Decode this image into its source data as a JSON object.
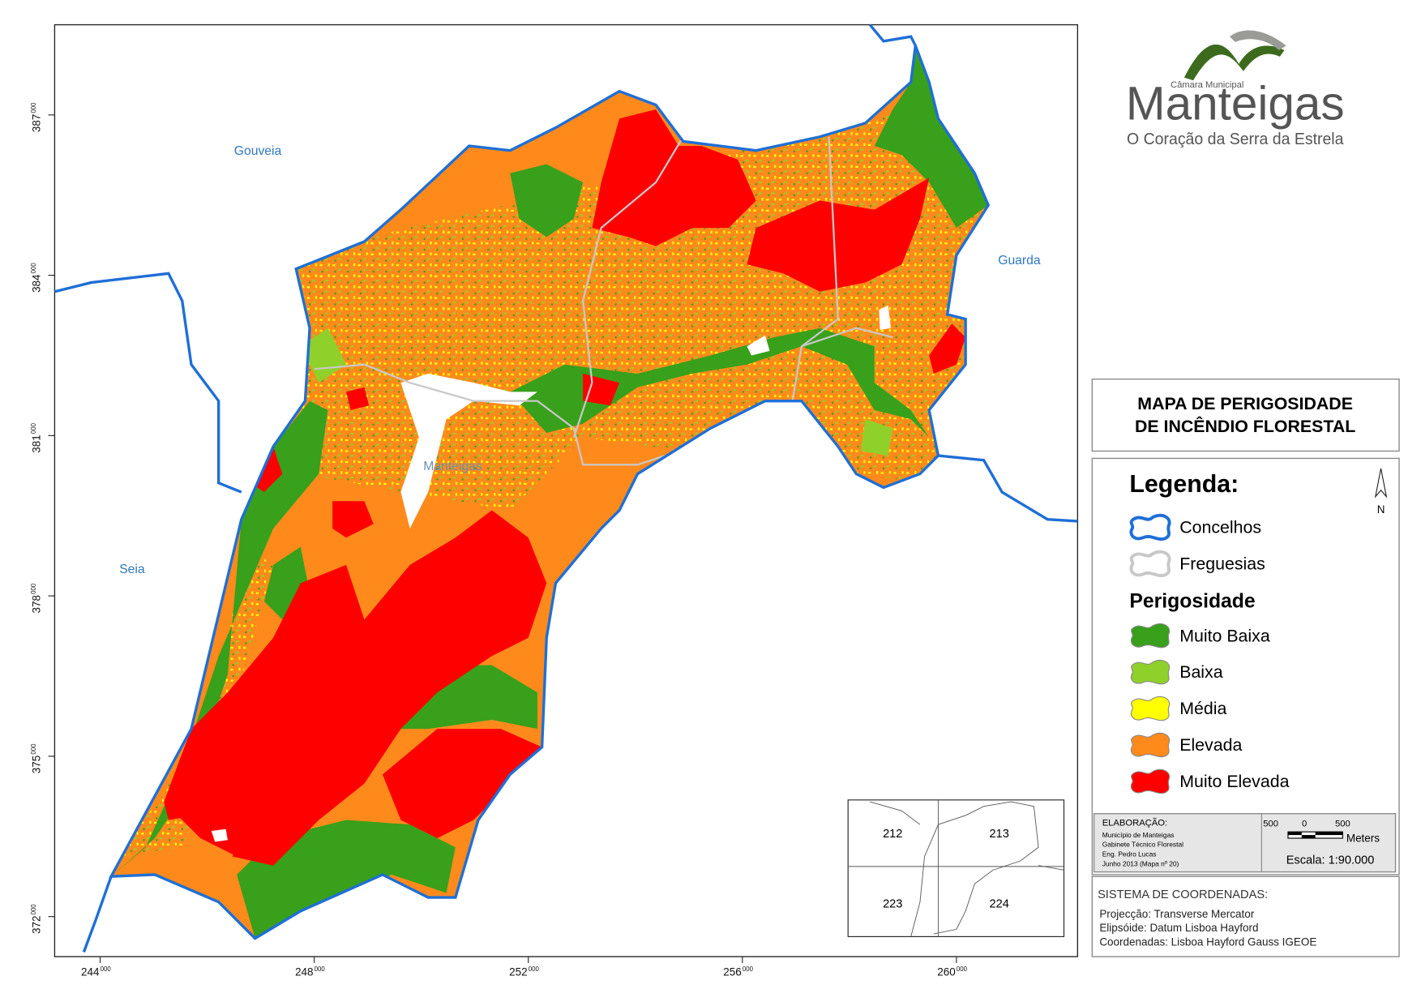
{
  "map": {
    "places": [
      "Gouveia",
      "Guarda",
      "Seia",
      "Manteigas"
    ],
    "x_ticks": [
      "244",
      "248",
      "252",
      "256",
      "260"
    ],
    "y_ticks": [
      "387",
      "384",
      "381",
      "378",
      "375",
      "372"
    ],
    "tick_suffix": "000"
  },
  "logo": {
    "council": "Câmara Municipal",
    "name": "Manteigas",
    "tagline": "O Coração da Serra da Estrela"
  },
  "title": [
    "MAPA DE PERIGOSIDADE",
    "DE INCÊNDIO FLORESTAL"
  ],
  "legend": {
    "heading": "Legenda:",
    "north": "N",
    "boundaries": [
      {
        "label": "Concelhos",
        "color": "#1f6fd6"
      },
      {
        "label": "Freguesias",
        "color": "#c8c8c8"
      }
    ],
    "hazard_title": "Perigosidade",
    "classes": [
      {
        "label": "Muito Baixa",
        "color": "#38a01a"
      },
      {
        "label": "Baixa",
        "color": "#8fd12a"
      },
      {
        "label": "Média",
        "color": "#ffff00"
      },
      {
        "label": "Elevada",
        "color": "#ff8a1c"
      },
      {
        "label": "Muito Elevada",
        "color": "#ff0000"
      }
    ]
  },
  "credits": {
    "heading": "ELABORAÇÃO:",
    "lines": [
      "Município de Manteigas",
      "Gabinete Técnico Florestal",
      "Eng. Pedro Lucas",
      "Junho 2013 (Mapa nº 20)"
    ]
  },
  "scale": {
    "ticks": [
      "500",
      "0",
      "500"
    ],
    "unit": "Meters",
    "ratio": "Escala: 1:90.000"
  },
  "coordinates": {
    "heading": "SISTEMA DE COORDENADAS:",
    "lines": [
      "Projecção: Transverse Mercator",
      "Elipsóide: Datum Lisboa Hayford",
      "Coordenadas: Lisboa Hayford Gauss IGEOE"
    ]
  },
  "inset": {
    "sheets": [
      "212",
      "213",
      "223",
      "224"
    ]
  }
}
